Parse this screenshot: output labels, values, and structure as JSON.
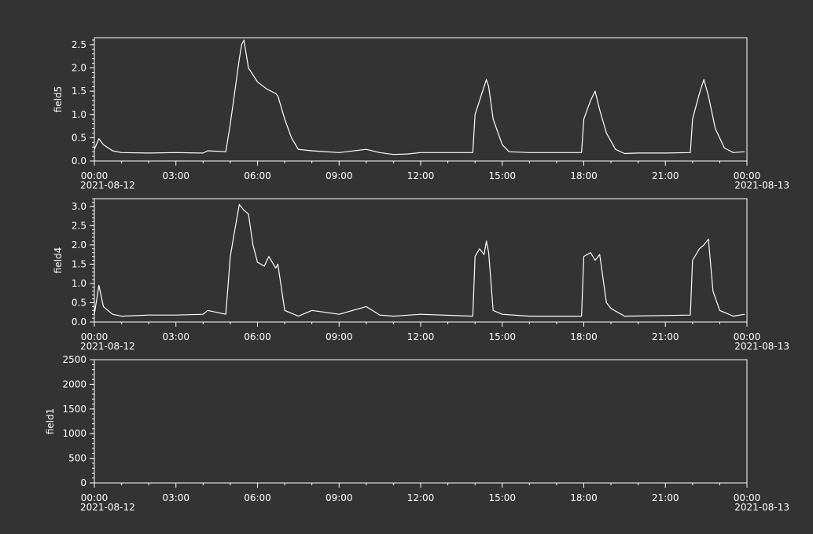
{
  "colors": {
    "background": "#333333",
    "foreground": "#ffffff"
  },
  "time_axis": {
    "start": "2021-08-12T00:00",
    "end": "2021-08-13T00:00",
    "tick_labels": [
      "00:00",
      "03:00",
      "06:00",
      "09:00",
      "12:00",
      "15:00",
      "18:00",
      "21:00",
      "00:00"
    ],
    "date_labels": [
      "2021-08-12",
      "2021-08-13"
    ],
    "minor_tick_interval_hours": 1
  },
  "chart_data": [
    {
      "type": "line",
      "ylabel": "field5",
      "ylim": [
        0,
        2.65
      ],
      "yticks": [
        "0.0",
        "0.5",
        "1.0",
        "1.5",
        "2.0",
        "2.5"
      ],
      "x": [
        "00:00",
        "00:10",
        "00:20",
        "00:40",
        "01:00",
        "02:00",
        "03:00",
        "04:00",
        "04:10",
        "04:50",
        "05:00",
        "05:10",
        "05:20",
        "05:25",
        "05:30",
        "05:40",
        "06:00",
        "06:20",
        "06:40",
        "06:45",
        "07:00",
        "07:15",
        "07:30",
        "08:00",
        "09:00",
        "10:00",
        "10:30",
        "11:00",
        "11:30",
        "12:00",
        "13:00",
        "13:55",
        "14:00",
        "14:15",
        "14:25",
        "14:30",
        "14:40",
        "15:00",
        "15:15",
        "16:00",
        "17:00",
        "17:55",
        "18:00",
        "18:15",
        "18:25",
        "18:35",
        "18:50",
        "19:10",
        "19:30",
        "20:00",
        "21:00",
        "21:55",
        "22:00",
        "22:15",
        "22:25",
        "22:35",
        "22:50",
        "23:10",
        "23:30",
        "23:55"
      ],
      "y": [
        0.25,
        0.48,
        0.35,
        0.22,
        0.18,
        0.17,
        0.18,
        0.17,
        0.22,
        0.2,
        0.8,
        1.5,
        2.2,
        2.5,
        2.6,
        2.0,
        1.7,
        1.55,
        1.45,
        1.4,
        0.9,
        0.5,
        0.25,
        0.22,
        0.18,
        0.25,
        0.18,
        0.14,
        0.15,
        0.18,
        0.18,
        0.18,
        1.0,
        1.45,
        1.75,
        1.6,
        0.9,
        0.35,
        0.2,
        0.18,
        0.18,
        0.18,
        0.9,
        1.3,
        1.5,
        1.1,
        0.6,
        0.25,
        0.16,
        0.17,
        0.17,
        0.18,
        0.9,
        1.45,
        1.75,
        1.4,
        0.7,
        0.28,
        0.18,
        0.2
      ]
    },
    {
      "type": "line",
      "ylabel": "field4",
      "ylim": [
        0,
        3.2
      ],
      "yticks": [
        "0.0",
        "0.5",
        "1.0",
        "1.5",
        "2.0",
        "2.5",
        "3.0"
      ],
      "x": [
        "00:00",
        "00:10",
        "00:20",
        "00:40",
        "01:00",
        "02:00",
        "03:00",
        "04:00",
        "04:10",
        "04:50",
        "05:00",
        "05:10",
        "05:20",
        "05:30",
        "05:40",
        "05:50",
        "06:00",
        "06:15",
        "06:25",
        "06:40",
        "06:45",
        "07:00",
        "07:30",
        "08:00",
        "09:00",
        "10:00",
        "10:30",
        "11:00",
        "12:00",
        "13:55",
        "14:00",
        "14:10",
        "14:20",
        "14:25",
        "14:30",
        "14:40",
        "15:00",
        "16:00",
        "17:55",
        "18:00",
        "18:15",
        "18:25",
        "18:35",
        "18:50",
        "19:00",
        "19:30",
        "21:55",
        "22:00",
        "22:15",
        "22:25",
        "22:35",
        "22:45",
        "23:00",
        "23:30",
        "23:55"
      ],
      "y": [
        0.2,
        0.95,
        0.4,
        0.2,
        0.15,
        0.18,
        0.18,
        0.2,
        0.3,
        0.2,
        1.7,
        2.4,
        3.05,
        2.9,
        2.8,
        2.0,
        1.55,
        1.45,
        1.7,
        1.4,
        1.5,
        0.3,
        0.15,
        0.3,
        0.2,
        0.4,
        0.18,
        0.15,
        0.2,
        0.15,
        1.7,
        1.9,
        1.75,
        2.1,
        1.8,
        0.3,
        0.2,
        0.15,
        0.15,
        1.7,
        1.8,
        1.6,
        1.75,
        0.5,
        0.35,
        0.15,
        0.18,
        1.6,
        1.9,
        2.0,
        2.15,
        0.8,
        0.3,
        0.15,
        0.2
      ]
    },
    {
      "type": "line",
      "ylabel": "field1",
      "ylim": [
        0,
        2500
      ],
      "yticks": [
        "0",
        "500",
        "1000",
        "1500",
        "2000",
        "2500"
      ],
      "x": [],
      "y": []
    }
  ]
}
